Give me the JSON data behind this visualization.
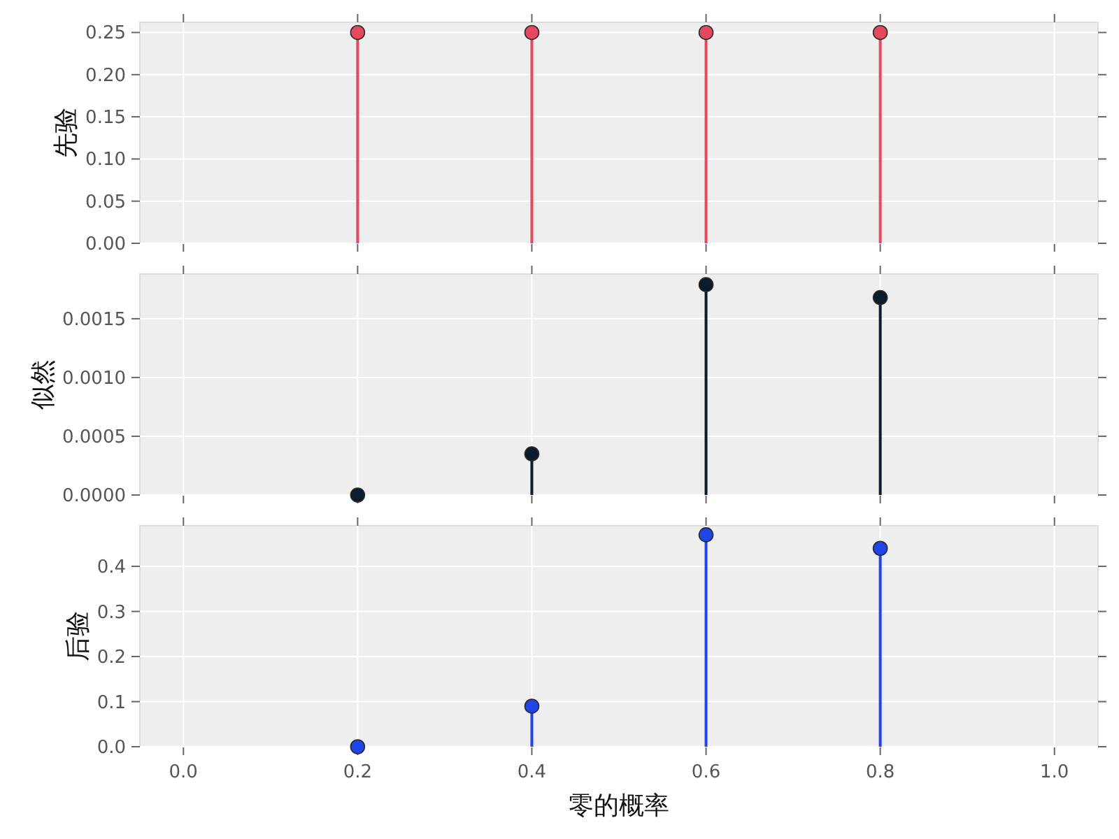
{
  "chart_data": [
    {
      "type": "lollipop",
      "x": [
        0.2,
        0.4,
        0.6,
        0.8
      ],
      "values": [
        0.25,
        0.25,
        0.25,
        0.25
      ],
      "color": "#e4495f",
      "ylabel": "先验",
      "xlim": [
        -0.05,
        1.05
      ],
      "xticks": [
        {
          "value": 0,
          "label": null
        },
        {
          "value": 0.2,
          "label": null
        },
        {
          "value": 0.4,
          "label": null
        },
        {
          "value": 0.6,
          "label": null
        },
        {
          "value": 0.8,
          "label": null
        },
        {
          "value": 1,
          "label": null
        }
      ],
      "ylim": [
        0,
        0.262
      ],
      "yticks": [
        {
          "value": 0,
          "label": "0.00"
        },
        0.05,
        {
          "value": 0.1,
          "label": "0.10"
        },
        0.15,
        {
          "value": 0.2,
          "label": "0.20"
        },
        0.25
      ],
      "grid": true,
      "marker": "circle",
      "tick_labels": "y"
    },
    {
      "type": "lollipop",
      "x": [
        0.2,
        0.4,
        0.6,
        0.8
      ],
      "values": [
        0,
        0.00035,
        0.00179,
        0.00168
      ],
      "color": "#0b1c2c",
      "ylabel": "似然",
      "xlim": [
        -0.05,
        1.05
      ],
      "xticks": [
        {
          "value": 0,
          "label": null
        },
        {
          "value": 0.2,
          "label": null
        },
        {
          "value": 0.4,
          "label": null
        },
        {
          "value": 0.6,
          "label": null
        },
        {
          "value": 0.8,
          "label": null
        },
        {
          "value": 1,
          "label": null
        }
      ],
      "ylim": [
        0,
        0.00188
      ],
      "yticks": [
        {
          "value": 0,
          "label": "0.0000"
        },
        0.0005,
        {
          "value": 0.001,
          "label": "0.0010"
        },
        0.0015
      ],
      "grid": true,
      "marker": "circle",
      "tick_labels": "y"
    },
    {
      "type": "lollipop",
      "x": [
        0.2,
        0.4,
        0.6,
        0.8
      ],
      "values": [
        0,
        0.09,
        0.47,
        0.44
      ],
      "color": "#1f44e8",
      "ylabel": "后验",
      "xlabel": "零的概率",
      "xlim": [
        -0.05,
        1.05
      ],
      "xticks": [
        {
          "value": 0,
          "label": "0.0"
        },
        0.2,
        0.4,
        0.6,
        0.8,
        {
          "value": 1,
          "label": "1.0"
        }
      ],
      "ylim": [
        0,
        0.49
      ],
      "yticks": [
        {
          "value": 0,
          "label": "0.0"
        },
        0.1,
        0.2,
        0.3,
        0.4
      ],
      "grid": true,
      "marker": "circle"
    }
  ]
}
